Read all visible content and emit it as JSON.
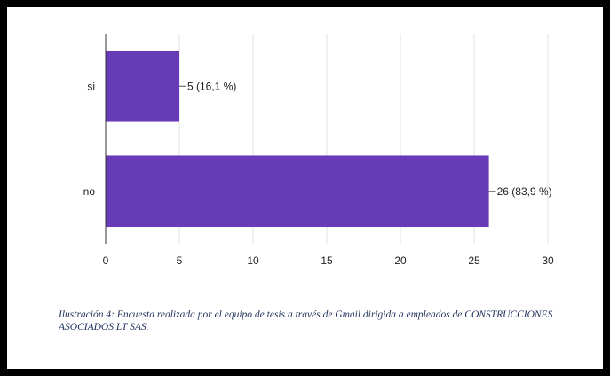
{
  "chart_data": {
    "type": "bar",
    "orientation": "horizontal",
    "categories": [
      "si",
      "no"
    ],
    "values": [
      5,
      26
    ],
    "data_labels": [
      "5 (16,1 %)",
      "26 (83,9 %)"
    ],
    "x_ticks": [
      "0",
      "5",
      "10",
      "15",
      "20",
      "25",
      "30"
    ],
    "xlim": [
      0,
      30
    ],
    "grid": true,
    "bar_color": "#673ab7"
  },
  "caption": "Ilustración 4: Encuesta realizada por el equipo de tesis a través de Gmail dirigida a empleados de CONSTRUCCIONES ASOCIADOS LT SAS."
}
